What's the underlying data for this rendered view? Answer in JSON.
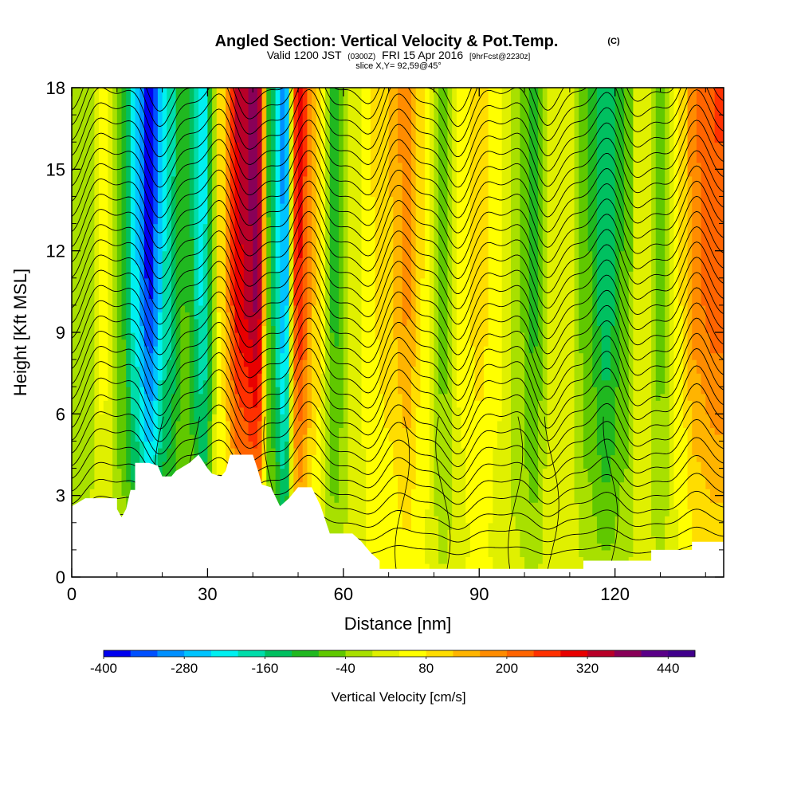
{
  "chart_data": {
    "type": "heatmap",
    "title": "Angled Section: Vertical Velocity & Pot.Temp.",
    "title_mark": "(C)",
    "subtitle_main_left": "Valid 1200 JST",
    "subtitle_small_a": "(0300Z)",
    "subtitle_main_right": "FRI 15 Apr 2016",
    "subtitle_small_b": "[9hrFcst@2230z]",
    "slice_label": "slice X,Y= 92,59@45°",
    "xlabel": "Distance [nm]",
    "ylabel": "Height [Kft MSL]",
    "xlim": [
      0,
      144
    ],
    "ylim": [
      0,
      18
    ],
    "x_ticks": [
      0,
      30,
      60,
      90,
      120
    ],
    "x_tick_labels": [
      "0",
      "30",
      "60",
      "90",
      "120"
    ],
    "y_ticks": [
      0,
      3,
      6,
      9,
      12,
      15,
      18
    ],
    "y_tick_labels": [
      "0",
      "3",
      "6",
      "9",
      "12",
      "15",
      "18"
    ],
    "velocity_columns": [
      {
        "x": 3,
        "w": -40
      },
      {
        "x": 7,
        "w": 60
      },
      {
        "x": 11,
        "w": -80
      },
      {
        "x": 14,
        "w": -240
      },
      {
        "x": 17,
        "w": -390
      },
      {
        "x": 21,
        "w": -200
      },
      {
        "x": 25,
        "w": -80
      },
      {
        "x": 29,
        "w": -220
      },
      {
        "x": 33,
        "w": 100
      },
      {
        "x": 37,
        "w": 330
      },
      {
        "x": 41,
        "w": 390
      },
      {
        "x": 44,
        "w": -120
      },
      {
        "x": 47,
        "w": -300
      },
      {
        "x": 50,
        "w": 300
      },
      {
        "x": 54,
        "w": 120
      },
      {
        "x": 58,
        "w": -100
      },
      {
        "x": 62,
        "w": 20
      },
      {
        "x": 66,
        "w": 80
      },
      {
        "x": 70,
        "w": 120
      },
      {
        "x": 74,
        "w": 180
      },
      {
        "x": 78,
        "w": 80
      },
      {
        "x": 82,
        "w": -60
      },
      {
        "x": 86,
        "w": 60
      },
      {
        "x": 90,
        "w": 110
      },
      {
        "x": 94,
        "w": 60
      },
      {
        "x": 98,
        "w": -20
      },
      {
        "x": 102,
        "w": -100
      },
      {
        "x": 106,
        "w": 40
      },
      {
        "x": 110,
        "w": 20
      },
      {
        "x": 114,
        "w": -80
      },
      {
        "x": 118,
        "w": -160
      },
      {
        "x": 122,
        "w": -80
      },
      {
        "x": 126,
        "w": 40
      },
      {
        "x": 130,
        "w": -60
      },
      {
        "x": 134,
        "w": 80
      },
      {
        "x": 138,
        "w": 200
      },
      {
        "x": 142,
        "w": 240
      }
    ],
    "terrain": [
      [
        0,
        2.6
      ],
      [
        3,
        2.9
      ],
      [
        10,
        2.9
      ],
      [
        10,
        2.5
      ],
      [
        11,
        2.2
      ],
      [
        12,
        2.5
      ],
      [
        13,
        3.2
      ],
      [
        14,
        3.2
      ],
      [
        14,
        4.2
      ],
      [
        17,
        4.2
      ],
      [
        19,
        4.1
      ],
      [
        20,
        3.7
      ],
      [
        22,
        3.7
      ],
      [
        23,
        3.9
      ],
      [
        24,
        4.0
      ],
      [
        26,
        4.2
      ],
      [
        28,
        4.5
      ],
      [
        30,
        4.0
      ],
      [
        31,
        3.8
      ],
      [
        33,
        3.7
      ],
      [
        34,
        3.9
      ],
      [
        35,
        4.5
      ],
      [
        40,
        4.5
      ],
      [
        41,
        4.0
      ],
      [
        42,
        3.4
      ],
      [
        44,
        3.3
      ],
      [
        46,
        2.6
      ],
      [
        48,
        2.9
      ],
      [
        50,
        3.3
      ],
      [
        53,
        3.3
      ],
      [
        55,
        2.6
      ],
      [
        57,
        1.6
      ],
      [
        62,
        1.6
      ],
      [
        64,
        1.3
      ],
      [
        66,
        0.9
      ],
      [
        68,
        0.6
      ],
      [
        68,
        0.3
      ],
      [
        113,
        0.3
      ],
      [
        113,
        0.6
      ],
      [
        128,
        0.6
      ],
      [
        128,
        1.0
      ],
      [
        137,
        1.0
      ],
      [
        137,
        1.3
      ],
      [
        144,
        1.3
      ]
    ],
    "colorbar": {
      "label": "Vertical Velocity [cm/s]",
      "min": -400,
      "max": 480,
      "step": 40,
      "colors": [
        "#0000ee",
        "#0050ff",
        "#0090ff",
        "#00c4ff",
        "#00f0f0",
        "#00ddaa",
        "#00c060",
        "#20b820",
        "#60c800",
        "#a8e000",
        "#e0f000",
        "#ffff00",
        "#ffdd00",
        "#ffb400",
        "#ff8c00",
        "#ff6400",
        "#ff3000",
        "#e80000",
        "#b80028",
        "#880058",
        "#5a0088",
        "#40008c"
      ],
      "tick_values": [
        -400,
        -280,
        -160,
        -40,
        80,
        200,
        320,
        440
      ],
      "tick_labels": [
        "-400",
        "-280",
        "-160",
        "-40",
        "80",
        "200",
        "320",
        "440"
      ]
    }
  }
}
